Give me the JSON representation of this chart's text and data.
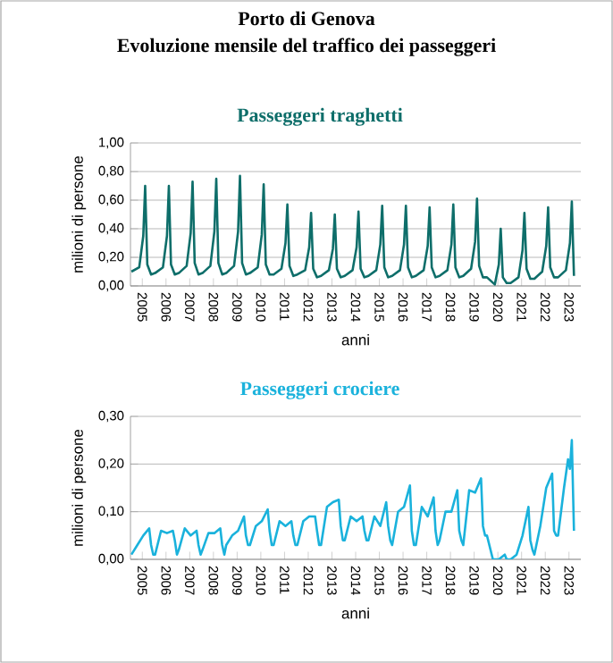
{
  "chart_data": [
    {
      "type": "line",
      "title": "Porto di Genova",
      "subtitle": "Evoluzione mensile del traffico dei passeggeri",
      "xlabel": "anni",
      "ylabel": "milioni di persone",
      "grid": "y",
      "xlim": [
        2005,
        2024
      ],
      "ylim": [
        0,
        1
      ],
      "xticks": [
        {
          "value": 2005.5,
          "label": "2005"
        },
        {
          "value": 2006.5,
          "label": "2006"
        },
        {
          "value": 2007.5,
          "label": "2007"
        },
        {
          "value": 2008.5,
          "label": "2008"
        },
        {
          "value": 2009.5,
          "label": "2009"
        },
        {
          "value": 2010.5,
          "label": "2010"
        },
        {
          "value": 2011.5,
          "label": "2011"
        },
        {
          "value": 2012.5,
          "label": "2012"
        },
        {
          "value": 2013.5,
          "label": "2013"
        },
        {
          "value": 2014.5,
          "label": "2014"
        },
        {
          "value": 2015.5,
          "label": "2015"
        },
        {
          "value": 2016.5,
          "label": "2016"
        },
        {
          "value": 2017.5,
          "label": "2017"
        },
        {
          "value": 2018.5,
          "label": "2018"
        },
        {
          "value": 2019.5,
          "label": "2019"
        },
        {
          "value": 2020.5,
          "label": "2020"
        },
        {
          "value": 2021.5,
          "label": "2021"
        },
        {
          "value": 2022.5,
          "label": "2022"
        },
        {
          "value": 2023.5,
          "label": "2023"
        }
      ],
      "yticks": [
        {
          "value": 0,
          "label": "0,00"
        },
        {
          "value": 0.2,
          "label": "0,20"
        },
        {
          "value": 0.4,
          "label": "0,40"
        },
        {
          "value": 0.6,
          "label": "0,60"
        },
        {
          "value": 0.8,
          "label": "0,80"
        },
        {
          "value": 1,
          "label": "1,00"
        }
      ],
      "series": [
        {
          "name": "Passeggeri traghetti",
          "color": "#0e6e6a",
          "x": [
            2005.04,
            2005.37,
            2005.54,
            2005.62,
            2005.71,
            2005.87,
            2006.04,
            2006.37,
            2006.54,
            2006.62,
            2006.71,
            2006.87,
            2007.04,
            2007.37,
            2007.54,
            2007.62,
            2007.71,
            2007.87,
            2008.04,
            2008.37,
            2008.54,
            2008.62,
            2008.71,
            2008.87,
            2009.04,
            2009.37,
            2009.54,
            2009.62,
            2009.71,
            2009.87,
            2010.04,
            2010.37,
            2010.54,
            2010.62,
            2010.71,
            2010.87,
            2011.04,
            2011.37,
            2011.54,
            2011.62,
            2011.71,
            2011.87,
            2012.04,
            2012.37,
            2012.54,
            2012.62,
            2012.71,
            2012.87,
            2013.04,
            2013.37,
            2013.54,
            2013.62,
            2013.71,
            2013.87,
            2014.04,
            2014.37,
            2014.54,
            2014.62,
            2014.71,
            2014.87,
            2015.04,
            2015.37,
            2015.54,
            2015.62,
            2015.71,
            2015.87,
            2016.04,
            2016.37,
            2016.54,
            2016.62,
            2016.71,
            2016.87,
            2017.04,
            2017.37,
            2017.54,
            2017.62,
            2017.71,
            2017.87,
            2018.04,
            2018.37,
            2018.54,
            2018.62,
            2018.71,
            2018.87,
            2019.04,
            2019.37,
            2019.54,
            2019.62,
            2019.71,
            2019.87,
            2020.04,
            2020.37,
            2020.54,
            2020.62,
            2020.71,
            2020.87,
            2021.04,
            2021.37,
            2021.54,
            2021.62,
            2021.71,
            2021.87,
            2022.04,
            2022.37,
            2022.54,
            2022.62,
            2022.71,
            2022.87,
            2023.04,
            2023.37,
            2023.54,
            2023.62,
            2023.71
          ],
          "values": [
            0.1,
            0.13,
            0.35,
            0.7,
            0.15,
            0.08,
            0.09,
            0.13,
            0.35,
            0.7,
            0.15,
            0.08,
            0.09,
            0.14,
            0.37,
            0.73,
            0.16,
            0.08,
            0.09,
            0.14,
            0.38,
            0.75,
            0.16,
            0.08,
            0.09,
            0.14,
            0.38,
            0.77,
            0.16,
            0.08,
            0.09,
            0.13,
            0.36,
            0.71,
            0.15,
            0.08,
            0.08,
            0.12,
            0.3,
            0.57,
            0.14,
            0.07,
            0.08,
            0.11,
            0.27,
            0.51,
            0.12,
            0.06,
            0.07,
            0.11,
            0.26,
            0.5,
            0.12,
            0.06,
            0.07,
            0.11,
            0.27,
            0.52,
            0.12,
            0.06,
            0.07,
            0.11,
            0.29,
            0.56,
            0.13,
            0.06,
            0.07,
            0.11,
            0.29,
            0.56,
            0.13,
            0.06,
            0.07,
            0.11,
            0.28,
            0.55,
            0.13,
            0.06,
            0.07,
            0.11,
            0.29,
            0.57,
            0.13,
            0.06,
            0.07,
            0.12,
            0.31,
            0.61,
            0.14,
            0.06,
            0.06,
            0.01,
            0.15,
            0.4,
            0.06,
            0.02,
            0.02,
            0.06,
            0.25,
            0.51,
            0.12,
            0.05,
            0.05,
            0.1,
            0.28,
            0.55,
            0.13,
            0.06,
            0.06,
            0.11,
            0.3,
            0.59,
            0.07
          ]
        }
      ]
    },
    {
      "type": "line",
      "xlabel": "anni",
      "ylabel": "milioni di persone",
      "grid": "y",
      "xlim": [
        2005,
        2024
      ],
      "ylim": [
        0,
        0.3
      ],
      "xticks": [
        {
          "value": 2005.5,
          "label": "2005"
        },
        {
          "value": 2006.5,
          "label": "2006"
        },
        {
          "value": 2007.5,
          "label": "2007"
        },
        {
          "value": 2008.5,
          "label": "2008"
        },
        {
          "value": 2009.5,
          "label": "2009"
        },
        {
          "value": 2010.5,
          "label": "2010"
        },
        {
          "value": 2011.5,
          "label": "2011"
        },
        {
          "value": 2012.5,
          "label": "2012"
        },
        {
          "value": 2013.5,
          "label": "2013"
        },
        {
          "value": 2014.5,
          "label": "2014"
        },
        {
          "value": 2015.5,
          "label": "2015"
        },
        {
          "value": 2016.5,
          "label": "2016"
        },
        {
          "value": 2017.5,
          "label": "2017"
        },
        {
          "value": 2018.5,
          "label": "2018"
        },
        {
          "value": 2019.5,
          "label": "2019"
        },
        {
          "value": 2020.5,
          "label": "2020"
        },
        {
          "value": 2021.5,
          "label": "2021"
        },
        {
          "value": 2022.5,
          "label": "2022"
        },
        {
          "value": 2023.5,
          "label": "2023"
        }
      ],
      "yticks": [
        {
          "value": 0,
          "label": "0,00"
        },
        {
          "value": 0.1,
          "label": "0,10"
        },
        {
          "value": 0.2,
          "label": "0,20"
        },
        {
          "value": 0.3,
          "label": "0,30"
        }
      ],
      "series": [
        {
          "name": "Passeggeri crociere",
          "color": "#1ab2dc",
          "x": [
            2005.04,
            2005.29,
            2005.54,
            2005.79,
            2005.87,
            2005.96,
            2006.04,
            2006.29,
            2006.54,
            2006.79,
            2006.87,
            2006.96,
            2007.04,
            2007.29,
            2007.54,
            2007.79,
            2007.87,
            2007.96,
            2008.04,
            2008.29,
            2008.54,
            2008.79,
            2008.87,
            2008.96,
            2009.04,
            2009.29,
            2009.54,
            2009.79,
            2009.87,
            2009.96,
            2010.04,
            2010.29,
            2010.54,
            2010.79,
            2010.87,
            2010.96,
            2011.04,
            2011.29,
            2011.54,
            2011.79,
            2011.87,
            2011.96,
            2012.04,
            2012.29,
            2012.54,
            2012.79,
            2012.87,
            2012.96,
            2013.04,
            2013.29,
            2013.54,
            2013.79,
            2013.87,
            2013.96,
            2014.04,
            2014.29,
            2014.54,
            2014.79,
            2014.87,
            2014.96,
            2015.04,
            2015.29,
            2015.54,
            2015.79,
            2015.87,
            2015.96,
            2016.04,
            2016.29,
            2016.54,
            2016.79,
            2016.87,
            2016.96,
            2017.04,
            2017.29,
            2017.54,
            2017.79,
            2017.87,
            2017.96,
            2018.04,
            2018.29,
            2018.54,
            2018.79,
            2018.87,
            2018.96,
            2019.04,
            2019.29,
            2019.54,
            2019.79,
            2019.87,
            2019.96,
            2020.04,
            2020.29,
            2020.54,
            2020.79,
            2020.87,
            2020.96,
            2021.04,
            2021.29,
            2021.54,
            2021.79,
            2021.87,
            2021.96,
            2022.04,
            2022.29,
            2022.54,
            2022.79,
            2022.87,
            2022.96,
            2023.04,
            2023.29,
            2023.46,
            2023.54,
            2023.62,
            2023.71
          ],
          "values": [
            0.01,
            0.03,
            0.05,
            0.065,
            0.03,
            0.01,
            0.01,
            0.06,
            0.055,
            0.06,
            0.04,
            0.01,
            0.02,
            0.065,
            0.05,
            0.06,
            0.03,
            0.01,
            0.02,
            0.055,
            0.055,
            0.065,
            0.03,
            0.01,
            0.03,
            0.05,
            0.06,
            0.09,
            0.05,
            0.03,
            0.03,
            0.07,
            0.08,
            0.105,
            0.06,
            0.03,
            0.03,
            0.08,
            0.07,
            0.08,
            0.05,
            0.03,
            0.03,
            0.08,
            0.09,
            0.09,
            0.06,
            0.03,
            0.03,
            0.11,
            0.12,
            0.125,
            0.07,
            0.04,
            0.04,
            0.09,
            0.08,
            0.09,
            0.06,
            0.04,
            0.04,
            0.09,
            0.07,
            0.12,
            0.07,
            0.04,
            0.03,
            0.1,
            0.11,
            0.155,
            0.06,
            0.03,
            0.03,
            0.11,
            0.09,
            0.13,
            0.06,
            0.03,
            0.04,
            0.1,
            0.1,
            0.145,
            0.06,
            0.04,
            0.03,
            0.145,
            0.14,
            0.17,
            0.07,
            0.05,
            0.05,
            0.0,
            0.0,
            0.01,
            0.0,
            0.0,
            0.0,
            0.01,
            0.05,
            0.11,
            0.04,
            0.02,
            0.01,
            0.07,
            0.15,
            0.18,
            0.06,
            0.05,
            0.05,
            0.15,
            0.21,
            0.19,
            0.25,
            0.06
          ]
        }
      ]
    }
  ]
}
